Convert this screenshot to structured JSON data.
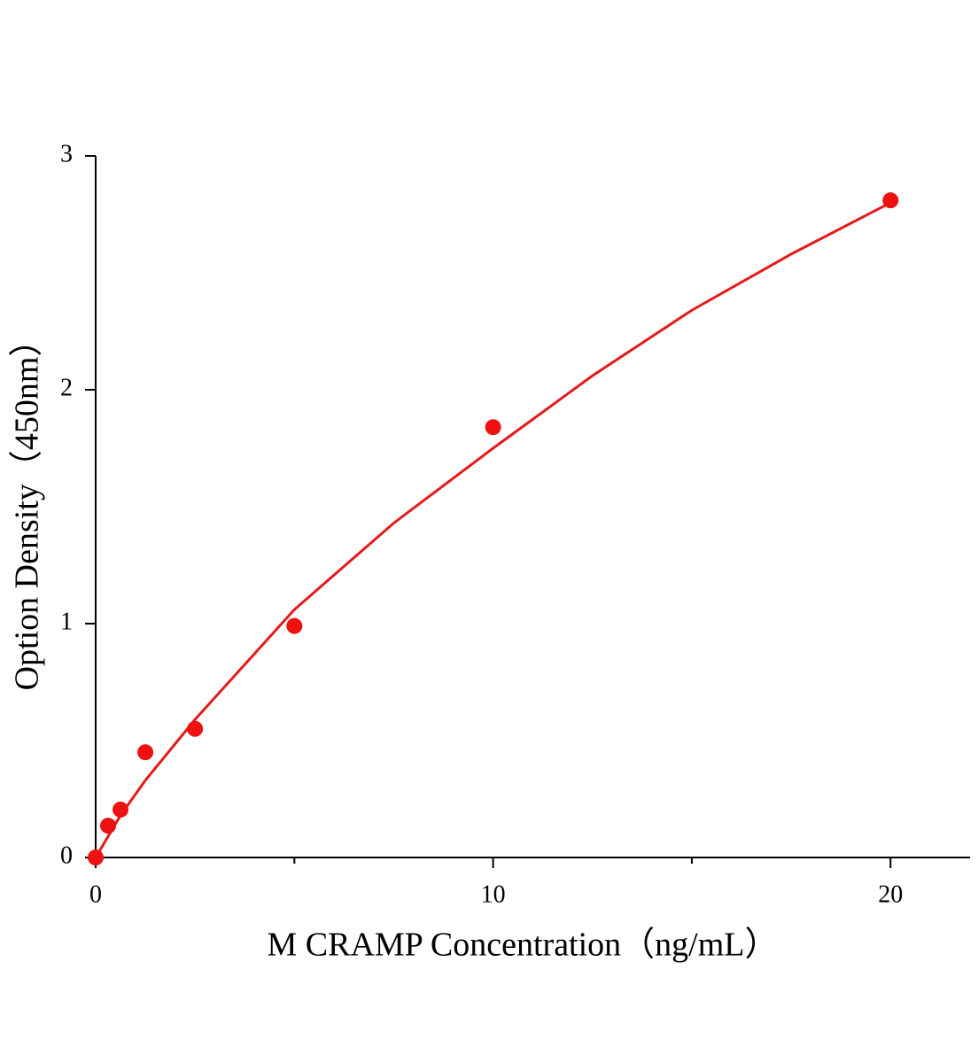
{
  "chart_data": {
    "type": "scatter",
    "xlabel": "M CRAMP Concentration（ng/mL）",
    "ylabel": "Option Density（450nm）",
    "xlim": [
      0,
      22
    ],
    "ylim": [
      0,
      3
    ],
    "xticks": [
      0,
      10,
      20
    ],
    "xminor_ticks": [
      5,
      15
    ],
    "yticks": [
      0,
      1,
      2,
      3
    ],
    "points": {
      "color": "#ee1111",
      "x": [
        0,
        0.3125,
        0.625,
        1.25,
        2.5,
        5,
        10,
        20
      ],
      "y": [
        0.0,
        0.136,
        0.205,
        0.45,
        0.55,
        0.99,
        1.84,
        2.81
      ]
    },
    "fit": {
      "color": "#e41a1a",
      "x": [
        0,
        0.625,
        1.25,
        2.5,
        5,
        7.5,
        10,
        12.5,
        15,
        17.5,
        20
      ],
      "y": [
        0,
        0.18,
        0.33,
        0.59,
        1.06,
        1.43,
        1.75,
        2.06,
        2.34,
        2.58,
        2.8
      ]
    }
  }
}
